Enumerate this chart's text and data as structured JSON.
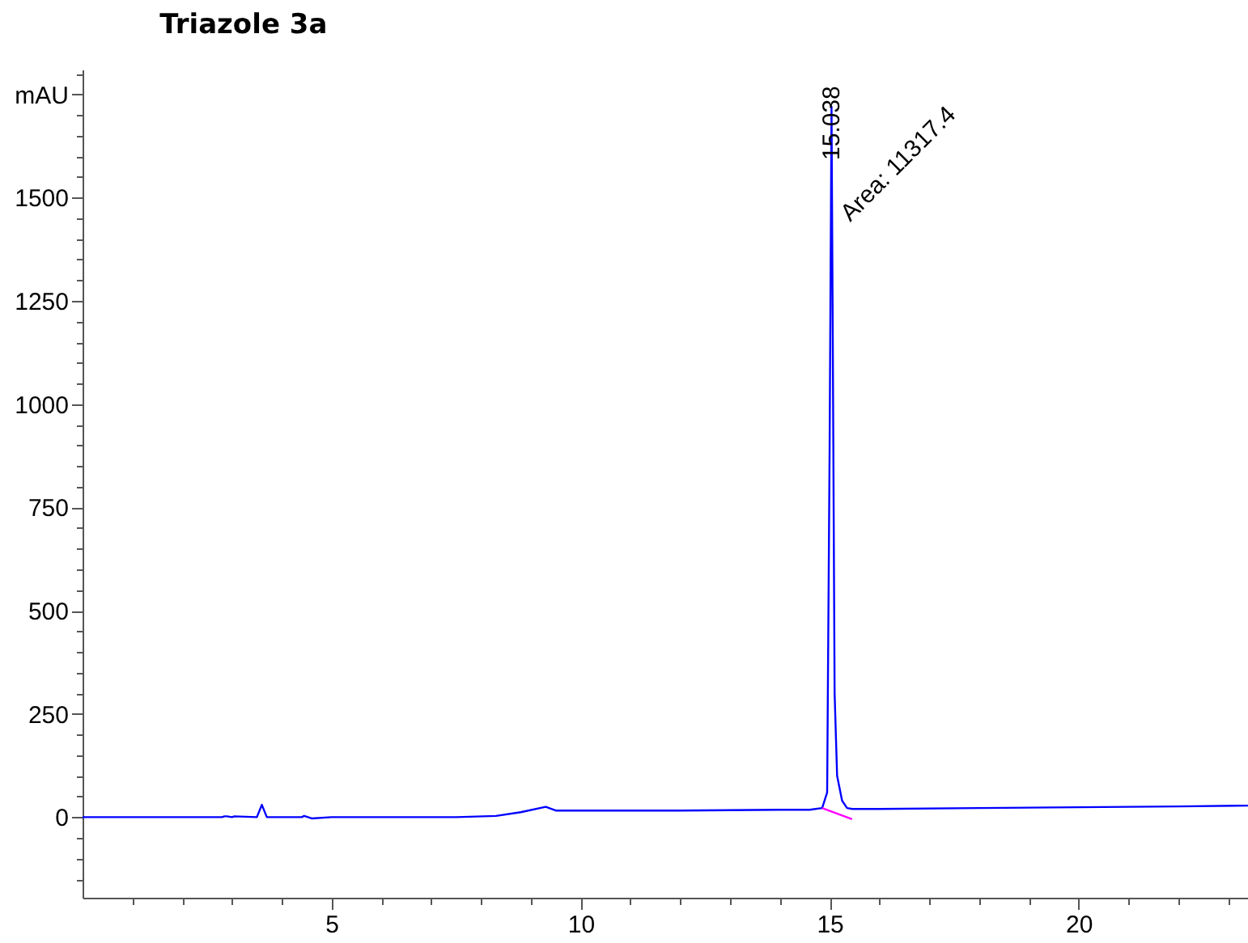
{
  "chart_data": {
    "type": "line",
    "title": "Triazole  3a",
    "series": [
      {
        "color": "#0000ff",
        "x": [
          0,
          2.8,
          2.85,
          2.9,
          3.0,
          3.05,
          3.5,
          3.6,
          3.7,
          4.4,
          4.45,
          4.6,
          5,
          7.5,
          8.3,
          8.8,
          9.3,
          9.5,
          10,
          12,
          14,
          14.6,
          14.85,
          14.95,
          15.0,
          15.038,
          15.07,
          15.1,
          15.15,
          15.25,
          15.35,
          15.45,
          16,
          18,
          20,
          22,
          23.4
        ],
        "values": [
          0,
          0,
          2,
          2,
          0,
          2,
          0,
          30,
          0,
          0,
          3,
          -3,
          0,
          0,
          3,
          12,
          25,
          16,
          16,
          16,
          18,
          18,
          22,
          60,
          900,
          1720,
          1000,
          300,
          100,
          40,
          22,
          20,
          20,
          22,
          24,
          26,
          28
        ]
      },
      {
        "color": "#ff00ff",
        "x": [
          14.85,
          15.45
        ],
        "values": [
          22,
          -5
        ]
      }
    ],
    "annotations": [
      {
        "text": "15.038",
        "x": 15.038,
        "y": 1720
      },
      {
        "text": "Area: 11317.4",
        "x": 15.038,
        "y": 1720
      }
    ],
    "xlim": [
      0,
      23.4
    ],
    "xticks": [
      {
        "value": 1,
        "label": null
      },
      {
        "value": 2,
        "label": null
      },
      {
        "value": 3,
        "label": null
      },
      {
        "value": 4,
        "label": null
      },
      5,
      {
        "value": 6,
        "label": null
      },
      {
        "value": 7,
        "label": null
      },
      {
        "value": 8,
        "label": null
      },
      {
        "value": 9,
        "label": null
      },
      10,
      {
        "value": 11,
        "label": null
      },
      {
        "value": 12,
        "label": null
      },
      {
        "value": 13,
        "label": null
      },
      {
        "value": 14,
        "label": null
      },
      15,
      {
        "value": 16,
        "label": null
      },
      {
        "value": 17,
        "label": null
      },
      {
        "value": 18,
        "label": null
      },
      {
        "value": 19,
        "label": null
      },
      20,
      {
        "value": 21,
        "label": null
      },
      {
        "value": 22,
        "label": null
      },
      {
        "value": 23,
        "label": null
      }
    ],
    "ylim": [
      -195,
      1810
    ],
    "yticks": [
      {
        "value": -150,
        "label": null
      },
      {
        "value": -100,
        "label": null
      },
      {
        "value": -50,
        "label": null
      },
      0,
      {
        "value": 50,
        "label": null
      },
      {
        "value": 100,
        "label": null
      },
      {
        "value": 150,
        "label": null
      },
      {
        "value": 200,
        "label": null
      },
      250,
      {
        "value": 300,
        "label": null
      },
      {
        "value": 350,
        "label": null
      },
      {
        "value": 400,
        "label": null
      },
      {
        "value": 450,
        "label": null
      },
      500,
      {
        "value": 550,
        "label": null
      },
      {
        "value": 600,
        "label": null
      },
      {
        "value": 650,
        "label": null
      },
      {
        "value": 700,
        "label": null
      },
      750,
      {
        "value": 800,
        "label": null
      },
      {
        "value": 850,
        "label": null
      },
      {
        "value": 900,
        "label": null
      },
      {
        "value": 950,
        "label": null
      },
      1000,
      {
        "value": 1050,
        "label": null
      },
      {
        "value": 1100,
        "label": null
      },
      {
        "value": 1150,
        "label": null
      },
      {
        "value": 1200,
        "label": null
      },
      1250,
      {
        "value": 1300,
        "label": null
      },
      {
        "value": 1350,
        "label": null
      },
      {
        "value": 1400,
        "label": null
      },
      {
        "value": 1450,
        "label": null
      },
      1500,
      {
        "value": 1550,
        "label": null
      },
      {
        "value": 1600,
        "label": null
      },
      {
        "value": 1650,
        "label": null
      },
      {
        "value": 1700,
        "label": null
      },
      {
        "value": 1750,
        "label": "mAU"
      },
      {
        "value": 1800,
        "label": null
      }
    ],
    "grid": false
  }
}
